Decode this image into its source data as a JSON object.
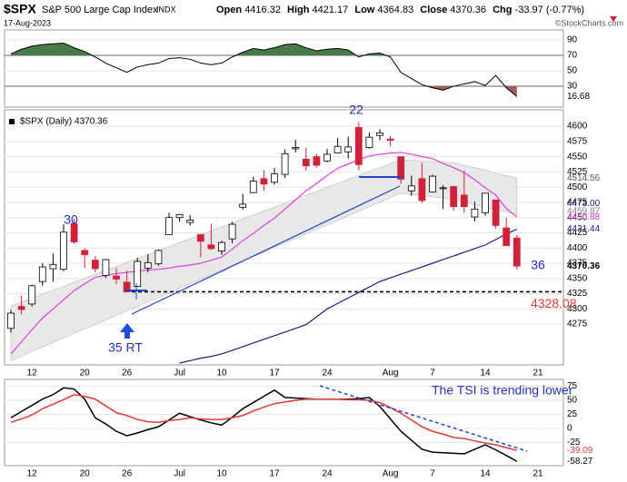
{
  "header": {
    "symbol": "$SPX",
    "name": "S&P 500 Large Cap Index",
    "exchange": "INDX",
    "date": "17-Aug-2023",
    "quote": [
      {
        "label": "Open",
        "value": 4416.32
      },
      {
        "label": "High",
        "value": 4421.17
      },
      {
        "label": "Low",
        "value": 4364.83
      },
      {
        "label": "Close",
        "value": 4370.36
      },
      {
        "label": "Chg",
        "value": -33.97,
        "pct": "(-0.77%)"
      }
    ],
    "credit": "©StockCharts.com"
  },
  "chart_data": [
    {
      "type": "line",
      "color": "#000000",
      "upper_color": "#4a7a4a",
      "lower_color": "#a85a5a",
      "bands": [
        30,
        70
      ],
      "values": [
        72,
        78,
        82,
        84,
        85,
        86,
        80,
        75,
        68,
        60,
        54,
        48,
        55,
        58,
        60,
        66,
        67,
        65,
        60,
        58,
        60,
        68,
        74,
        79,
        77,
        80,
        84,
        85,
        80,
        76,
        78,
        79,
        77,
        68,
        72,
        73,
        68,
        48,
        40,
        32,
        28,
        25,
        30,
        33,
        36,
        31,
        44,
        28,
        16.68,
        null,
        null
      ],
      "ylim": [
        3,
        103
      ],
      "yticks": [
        90,
        70,
        50,
        30
      ],
      "last_tag": 16.68
    },
    {
      "type": "candlestick",
      "title": "$SPX (Daily) 4370.36",
      "categories": [
        null,
        null,
        "12",
        null,
        null,
        null,
        null,
        "20",
        null,
        null,
        null,
        "26",
        null,
        null,
        null,
        null,
        "Jul",
        null,
        null,
        null,
        "10",
        null,
        null,
        null,
        null,
        "17",
        null,
        null,
        null,
        null,
        "24",
        null,
        null,
        null,
        null,
        null,
        "Aug",
        null,
        null,
        null,
        "7",
        null,
        null,
        null,
        null,
        "14",
        null,
        null,
        null,
        null,
        "21"
      ],
      "open": [
        4268,
        4304,
        4308,
        4345,
        4366,
        4365,
        4440,
        4396,
        4380,
        4355,
        4354,
        4344,
        4337,
        4367,
        4374,
        4422,
        4450,
        4442,
        4422,
        4405,
        4395,
        4415,
        4467,
        4491,
        4514,
        4508,
        4521,
        4563,
        4546,
        4550,
        4543,
        4556,
        4558,
        4598,
        4565,
        4585,
        4579,
        4550,
        4494,
        4514,
        4492,
        4498,
        4501,
        4487,
        4451,
        4458,
        4479,
        4433,
        4416.32,
        null,
        null
      ],
      "high": [
        4298,
        4322,
        4340,
        4375,
        4391,
        4439,
        4448,
        4400,
        4387,
        4382,
        4367,
        4363,
        4384,
        4390,
        4398,
        4458,
        4456,
        4454,
        4423,
        4440,
        4412,
        4443,
        4489,
        4517,
        4528,
        4532,
        4562,
        4578,
        4565,
        4555,
        4563,
        4581,
        4583,
        4607,
        4590,
        4595,
        4584,
        4550,
        4519,
        4540,
        4520,
        4503,
        4502,
        4527,
        4476,
        4490,
        4479,
        4450,
        4421.17,
        null,
        null
      ],
      "low": [
        4261,
        4291,
        4304,
        4338,
        4345,
        4362,
        4407,
        4367,
        4360,
        4351,
        4341,
        4328,
        4336,
        4360,
        4371,
        4422,
        4443,
        4437,
        4385,
        4397,
        4389,
        4408,
        4463,
        4490,
        4494,
        4504,
        4515,
        4557,
        4527,
        4532,
        4541,
        4555,
        4547,
        4528,
        4563,
        4577,
        4567,
        4505,
        4486,
        4474,
        4491,
        4464,
        4461,
        4458,
        4444,
        4453,
        4432,
        4403,
        4364.83,
        null,
        null
      ],
      "close": [
        4293,
        4299,
        4338,
        4369,
        4373,
        4426,
        4410,
        4389,
        4366,
        4381,
        4349,
        4328,
        4378,
        4376,
        4396,
        4450,
        4455,
        4446,
        4411,
        4399,
        4409,
        4439,
        4472,
        4510,
        4505,
        4522,
        4555,
        4565,
        4535,
        4536,
        4554,
        4567,
        4566,
        4537,
        4582,
        4589,
        4577,
        4513,
        4502,
        4478,
        4518,
        4499,
        4468,
        4468,
        4464,
        4490,
        4437,
        4404,
        4370.36,
        null,
        null
      ],
      "up_color": "#ffffff",
      "down_color": "#d0213a",
      "band": {
        "color": "#e8e8e8",
        "upper": [
          4305,
          4311,
          4318,
          4324,
          4331,
          4337,
          4344,
          4350,
          4357,
          4363,
          4370,
          4376,
          4383,
          4389,
          4396,
          4402,
          4409,
          4415,
          4422,
          4428,
          4435,
          4441,
          4448,
          4454,
          4461,
          4467,
          4474,
          4480,
          4487,
          4493,
          4500,
          4506,
          4513,
          4519,
          4526,
          4532,
          4539,
          4545,
          4544,
          4543,
          4542,
          4541,
          4540,
          4536,
          4532,
          4528,
          4523,
          4519,
          4515,
          null,
          null
        ],
        "lower": [
          4215,
          4222,
          4230,
          4237,
          4245,
          4252,
          4260,
          4267,
          4274,
          4282,
          4289,
          4297,
          4304,
          4312,
          4319,
          4326,
          4334,
          4341,
          4349,
          4356,
          4364,
          4371,
          4379,
          4386,
          4393,
          4401,
          4408,
          4416,
          4423,
          4431,
          4438,
          4445,
          4453,
          4460,
          4468,
          4475,
          4483,
          4490,
          4488,
          4486,
          4484,
          4482,
          4480,
          4476,
          4471,
          4467,
          4463,
          4459,
          4455,
          null,
          null
        ]
      },
      "series": [
        {
          "color": "#e040e0",
          "values": [
            4226,
            4246,
            4266,
            4285,
            4300,
            4315,
            4330,
            4341,
            4352,
            4355,
            4358,
            4360,
            4362,
            4364,
            4365,
            4367,
            4370,
            4372,
            4375,
            4380,
            4385,
            4398,
            4412,
            4424,
            4437,
            4449,
            4464,
            4479,
            4494,
            4506,
            4519,
            4531,
            4538,
            4545,
            4551,
            4554,
            4556,
            4557,
            4554,
            4550,
            4547,
            4539,
            4532,
            4524,
            4512,
            4499,
            4487,
            4465,
            4451,
            null,
            null
          ]
        },
        {
          "color": "#1a237e",
          "values": [
            null,
            null,
            null,
            null,
            null,
            null,
            null,
            null,
            null,
            null,
            null,
            null,
            null,
            null,
            null,
            null,
            4211,
            4215,
            4219,
            4222,
            4226,
            4232,
            4238,
            4244,
            4250,
            4256,
            4262,
            4268,
            4274,
            4287,
            4300,
            4309,
            4318,
            4327,
            4336,
            4345,
            4351,
            4357,
            4363,
            4369,
            4375,
            4381,
            4387,
            4393,
            4399,
            4405,
            4414,
            4423,
            4431,
            null,
            null
          ]
        }
      ],
      "ylim": [
        4208,
        4627
      ],
      "yticks": [
        4600,
        4575,
        4550,
        4525,
        4500,
        4475,
        4450,
        4425,
        4400,
        4375,
        4350,
        4325,
        4300,
        4275
      ],
      "value_tags": [
        {
          "value": 4514.56,
          "color": "#555555"
        },
        {
          "value": 4473,
          "label": "4473.00",
          "color": "#1a237e"
        },
        {
          "value": 4459.87,
          "color": "#888888"
        },
        {
          "value": 4450.88,
          "color": "#cc33cc"
        },
        {
          "value": 4431.44,
          "color": "#1a237e"
        },
        {
          "value": 4370.36,
          "color": "#000000"
        }
      ],
      "support": 4328.08,
      "support_color": "#e53935",
      "annotations": [
        "30",
        "22",
        "36",
        "35 RT"
      ]
    },
    {
      "type": "line",
      "categories": [
        null,
        null,
        "12",
        null,
        null,
        null,
        null,
        "20",
        null,
        null,
        null,
        "26",
        null,
        null,
        null,
        null,
        "Jul",
        null,
        null,
        null,
        "10",
        null,
        null,
        null,
        null,
        "17",
        null,
        null,
        null,
        null,
        "24",
        null,
        null,
        null,
        null,
        null,
        "Aug",
        null,
        null,
        null,
        "7",
        null,
        null,
        null,
        null,
        "14",
        null,
        null,
        null,
        null,
        "21"
      ],
      "series": [
        {
          "color": "#000000",
          "values": [
            19,
            30,
            41,
            52,
            60,
            72,
            70,
            52,
            19,
            8,
            -5,
            -13,
            -8,
            -2,
            3,
            15,
            27,
            21,
            15,
            10,
            6,
            20,
            35,
            46,
            57,
            68,
            55,
            54,
            53,
            52,
            52,
            52,
            52,
            53,
            55,
            39,
            17,
            -5,
            -21,
            -37,
            -42,
            -43,
            -44,
            -45,
            -37,
            -29,
            -38,
            -48,
            -58.27,
            null,
            null
          ]
        },
        {
          "color": "#e53935",
          "values": [
            11,
            17,
            24,
            35,
            43,
            51,
            60,
            57,
            52,
            40,
            28,
            23,
            16,
            12,
            11,
            14,
            16,
            19,
            17,
            16,
            16,
            19,
            23,
            31,
            38,
            44,
            47,
            50,
            52,
            52,
            52,
            52,
            51,
            51,
            50,
            46,
            37,
            27,
            15,
            3,
            -5,
            -10,
            -16,
            -18,
            -22,
            -26,
            -29,
            -34,
            -39.09,
            null,
            null
          ]
        }
      ],
      "ylim": [
        -66,
        87
      ],
      "yticks": [
        75,
        50,
        25,
        0,
        -25
      ],
      "annotation": "The TSI is trending lower"
    }
  ]
}
